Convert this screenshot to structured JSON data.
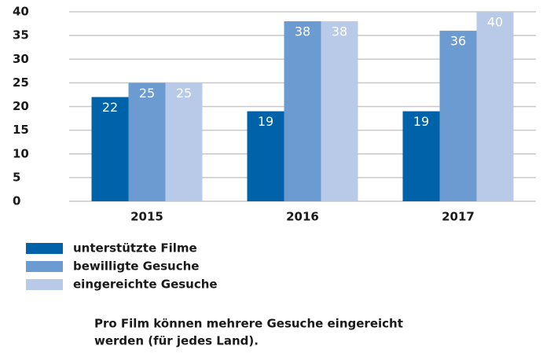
{
  "chart_data": {
    "type": "bar",
    "categories": [
      "2015",
      "2016",
      "2017"
    ],
    "series": [
      {
        "name": "unterstützte Filme",
        "color": "#0062a8",
        "values": [
          22,
          19,
          19
        ]
      },
      {
        "name": "bewilligte Gesuche",
        "color": "#6b9bd1",
        "values": [
          25,
          38,
          36
        ]
      },
      {
        "name": "eingereichte Gesuche",
        "color": "#b8cae7",
        "values": [
          25,
          38,
          40
        ]
      }
    ],
    "ylim": [
      0,
      40
    ],
    "yticks": [
      0,
      5,
      10,
      15,
      20,
      25,
      30,
      35,
      40
    ],
    "grid": true,
    "note": [
      "Pro Film können mehrere Gesuche eingereicht",
      "werden (für jedes Land)."
    ]
  }
}
